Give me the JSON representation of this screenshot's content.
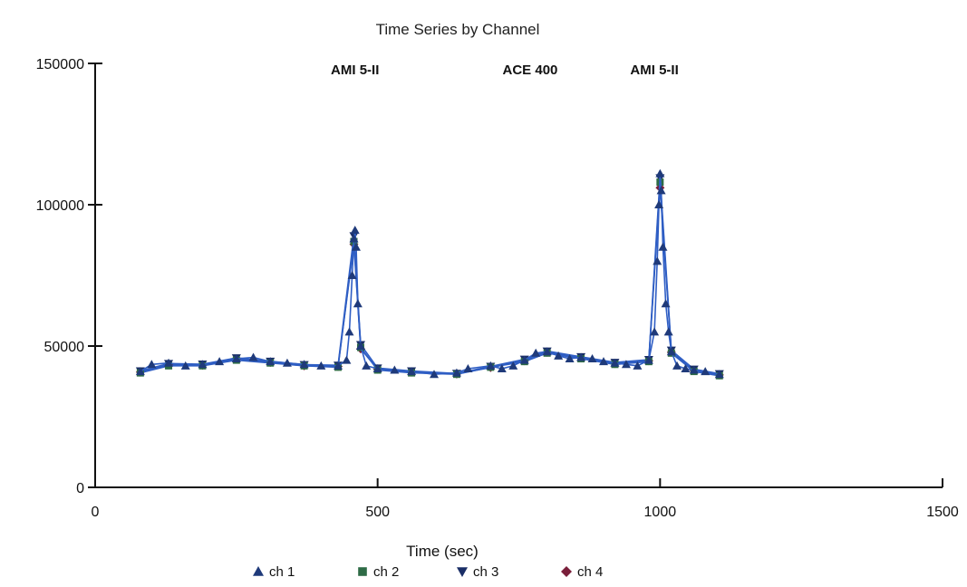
{
  "chart_data": {
    "type": "scatter",
    "title": "Time Series by Channel",
    "xlabel": "Time (sec)",
    "ylabel": "",
    "xlim": [
      0,
      1500
    ],
    "ylim": [
      0,
      150000
    ],
    "xticks": [
      0,
      500,
      1000,
      1500
    ],
    "yticks": [
      0,
      50000,
      100000,
      150000
    ],
    "grid": false,
    "legend_position": "bottom",
    "annotations": [
      {
        "text": "AMI 5-II",
        "x": 460
      },
      {
        "text": "ACE 400",
        "x": 770
      },
      {
        "text": "AMI 5-II",
        "x": 990
      }
    ],
    "series": [
      {
        "name": "ch 1",
        "marker": "triangle-up",
        "color": "#1f3a7a",
        "x": [
          80,
          100,
          130,
          160,
          190,
          220,
          250,
          280,
          310,
          340,
          370,
          400,
          430,
          445,
          450,
          455,
          458,
          460,
          462,
          465,
          470,
          480,
          500,
          530,
          560,
          600,
          640,
          660,
          700,
          720,
          740,
          760,
          780,
          800,
          820,
          840,
          860,
          880,
          900,
          920,
          940,
          960,
          980,
          990,
          995,
          998,
          1000,
          1002,
          1005,
          1010,
          1015,
          1020,
          1030,
          1045,
          1060,
          1080,
          1105
        ],
        "y": [
          41000,
          43500,
          44000,
          43000,
          43500,
          44500,
          45500,
          46000,
          44500,
          44000,
          43500,
          43000,
          43000,
          45000,
          55000,
          75000,
          88000,
          91000,
          85000,
          65000,
          50000,
          43000,
          42000,
          41500,
          41000,
          40000,
          40500,
          42000,
          43000,
          42000,
          43000,
          45000,
          47500,
          48000,
          46500,
          45500,
          46000,
          45500,
          44500,
          44000,
          43500,
          43000,
          45000,
          55000,
          80000,
          100000,
          111000,
          105000,
          85000,
          65000,
          55000,
          48000,
          43000,
          42000,
          41500,
          41000,
          40000
        ]
      },
      {
        "name": "ch 2",
        "marker": "square",
        "color": "#2e6b46",
        "x": [
          80,
          130,
          190,
          250,
          310,
          370,
          430,
          458,
          470,
          500,
          560,
          640,
          700,
          760,
          800,
          860,
          920,
          980,
          1000,
          1020,
          1060,
          1105
        ],
        "y": [
          40500,
          43000,
          43000,
          45000,
          44000,
          43000,
          42500,
          87000,
          49500,
          41500,
          40500,
          40000,
          42500,
          44500,
          47500,
          45500,
          43500,
          44500,
          108000,
          47500,
          41000,
          39500
        ]
      },
      {
        "name": "ch 3",
        "marker": "triangle-down",
        "color": "#1a2e66",
        "x": [
          80,
          130,
          190,
          250,
          310,
          370,
          430,
          458,
          470,
          500,
          560,
          640,
          700,
          760,
          800,
          860,
          920,
          980,
          1000,
          1020,
          1060,
          1105
        ],
        "y": [
          41200,
          43800,
          43600,
          45800,
          44600,
          43400,
          43200,
          89000,
          50500,
          42200,
          41200,
          40300,
          42800,
          45300,
          48200,
          46200,
          44200,
          45200,
          109500,
          48500,
          41800,
          40200
        ]
      },
      {
        "name": "ch 4",
        "marker": "diamond",
        "color": "#7a1f3a",
        "x": [
          80,
          130,
          190,
          250,
          310,
          370,
          430,
          458,
          470,
          500,
          560,
          640,
          700,
          760,
          800,
          860,
          920,
          980,
          1000,
          1020,
          1060,
          1105
        ],
        "y": [
          40800,
          43400,
          43200,
          45400,
          44200,
          43000,
          42800,
          86000,
          49000,
          41800,
          40800,
          40100,
          42400,
          44800,
          47800,
          45800,
          43800,
          44800,
          106000,
          47800,
          41400,
          39800
        ]
      }
    ]
  }
}
